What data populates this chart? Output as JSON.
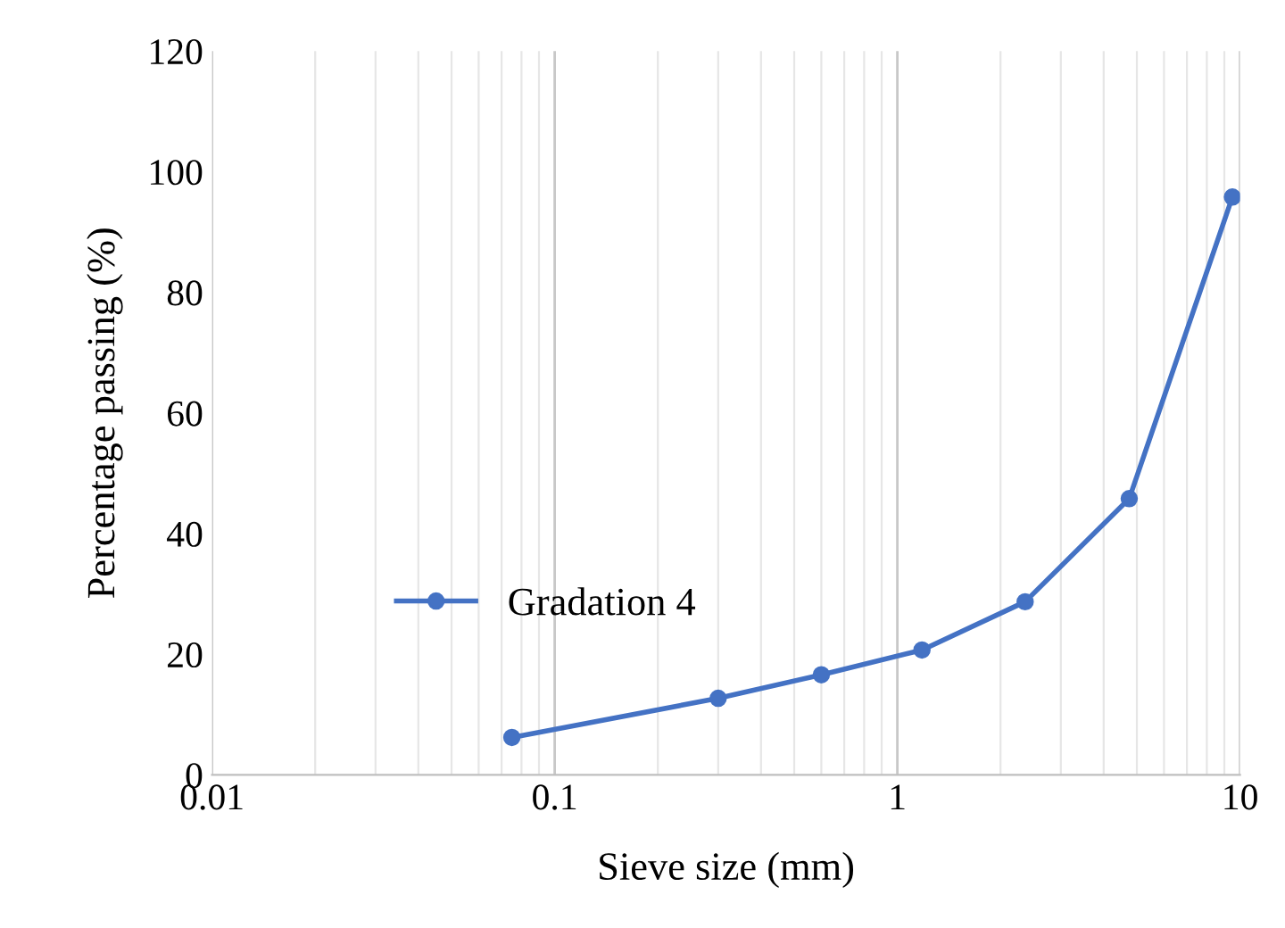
{
  "chart_data": {
    "type": "line",
    "xlabel": "Sieve size (mm)",
    "ylabel": "Percentage passing (%)",
    "x": [
      0.075,
      0.3,
      0.6,
      1.18,
      2.36,
      4.75,
      9.5
    ],
    "series": [
      {
        "name": "Gradation 4",
        "color": "#4472c4",
        "values": [
          6.2,
          12.7,
          16.6,
          20.7,
          28.7,
          45.8,
          95.8
        ]
      }
    ],
    "log": "x",
    "xlim": [
      0.01,
      10
    ],
    "xticks": [
      0.01,
      0.1,
      1,
      10
    ],
    "ylim": [
      0,
      120
    ],
    "yticks": [
      0,
      20,
      40,
      60,
      80,
      100,
      120
    ],
    "grid": "x",
    "legend": "lower center",
    "marker": "circle",
    "line_style": "solid"
  }
}
